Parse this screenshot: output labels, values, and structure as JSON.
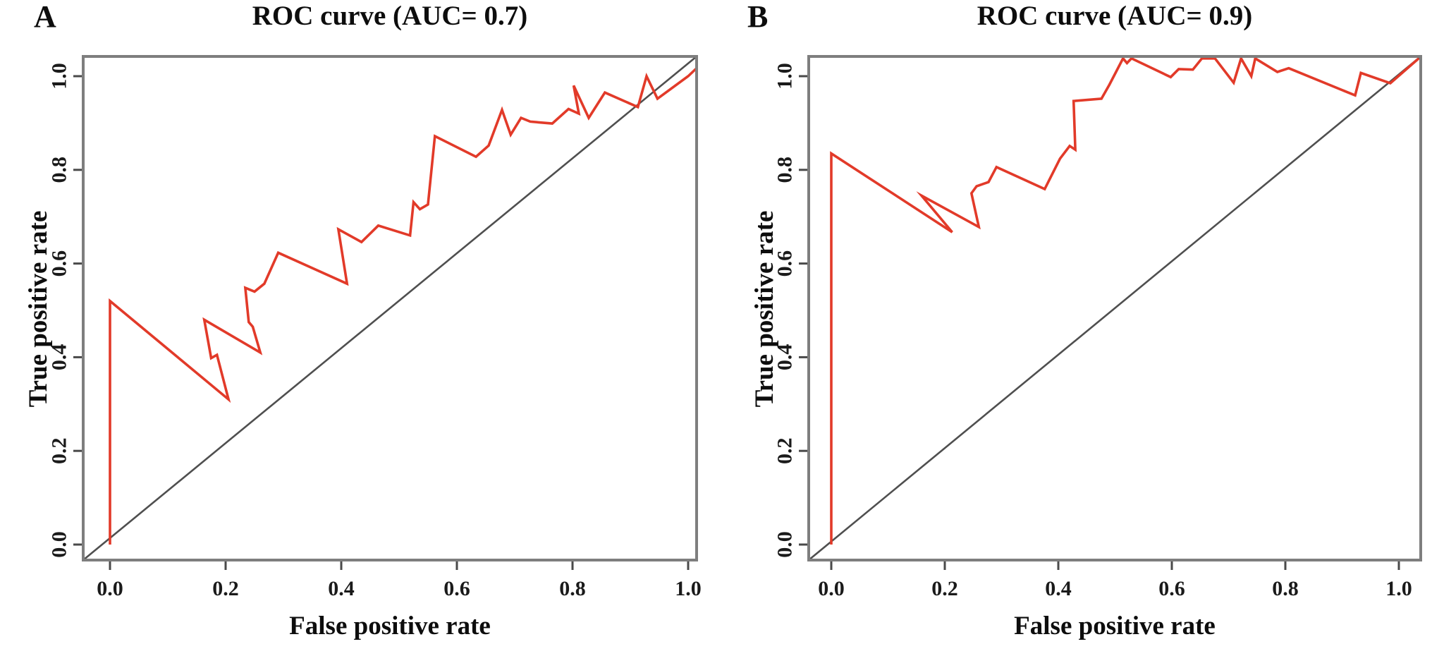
{
  "figure": {
    "background": "#ffffff",
    "curve_color": "#e23a29",
    "diagonal_color": "#4f4f4f",
    "box_color": "#7e7e7e",
    "text_color": "#0d0d0d"
  },
  "panels": [
    {
      "corner_label": "A",
      "title": "ROC curve (AUC= 0.7)",
      "xlabel": "False positive rate",
      "ylabel": "True positive rate",
      "auc": "0.7",
      "x_tick_labels": [
        "0.0",
        "0.2",
        "0.4",
        "0.6",
        "0.8",
        "1.0"
      ],
      "y_tick_labels": [
        "0.0",
        "0.2",
        "0.4",
        "0.6",
        "0.8",
        "1.0"
      ]
    },
    {
      "corner_label": "B",
      "title": "ROC curve (AUC= 0.9)",
      "xlabel": "False positive rate",
      "ylabel": "True positive rate",
      "auc": "0.9",
      "x_tick_labels": [
        "0.0",
        "0.2",
        "0.4",
        "0.6",
        "0.8",
        "1.0"
      ],
      "y_tick_labels": [
        "0.0",
        "0.2",
        "0.4",
        "0.6",
        "0.8",
        "1.0"
      ]
    }
  ],
  "chart_data": [
    {
      "type": "line",
      "title": "ROC curve (AUC= 0.7)",
      "xlabel": "False positive rate",
      "ylabel": "True positive rate",
      "xlim": [
        0,
        1
      ],
      "ylim": [
        0,
        1
      ],
      "x_ticks": [
        0.0,
        0.2,
        0.4,
        0.6,
        0.8,
        1.0
      ],
      "y_ticks": [
        0.0,
        0.2,
        0.4,
        0.6,
        0.8,
        1.0
      ],
      "grid": false,
      "legend": "none",
      "reference_line": "y = x diagonal",
      "auc": 0.7,
      "series": [
        {
          "name": "ROC curve",
          "color": "#e23a29",
          "points": [
            [
              0.0,
              0.0
            ],
            [
              0.0,
              0.52
            ],
            [
              0.205,
              0.31
            ],
            [
              0.185,
              0.405
            ],
            [
              0.175,
              0.398
            ],
            [
              0.163,
              0.48
            ],
            [
              0.26,
              0.41
            ],
            [
              0.247,
              0.465
            ],
            [
              0.24,
              0.475
            ],
            [
              0.234,
              0.548
            ],
            [
              0.25,
              0.54
            ],
            [
              0.267,
              0.557
            ],
            [
              0.291,
              0.623
            ],
            [
              0.41,
              0.557
            ],
            [
              0.395,
              0.673
            ],
            [
              0.435,
              0.646
            ],
            [
              0.464,
              0.681
            ],
            [
              0.519,
              0.66
            ],
            [
              0.525,
              0.731
            ],
            [
              0.536,
              0.716
            ],
            [
              0.55,
              0.726
            ],
            [
              0.562,
              0.872
            ],
            [
              0.633,
              0.828
            ],
            [
              0.655,
              0.852
            ],
            [
              0.678,
              0.928
            ],
            [
              0.693,
              0.875
            ],
            [
              0.711,
              0.911
            ],
            [
              0.727,
              0.903
            ],
            [
              0.765,
              0.899
            ],
            [
              0.793,
              0.93
            ],
            [
              0.811,
              0.92
            ],
            [
              0.802,
              0.98
            ],
            [
              0.828,
              0.911
            ],
            [
              0.856,
              0.965
            ],
            [
              0.913,
              0.934
            ],
            [
              0.928,
              1.0
            ],
            [
              0.947,
              0.952
            ],
            [
              1.0,
              1.0
            ],
            [
              1.03,
              1.035
            ]
          ]
        }
      ]
    },
    {
      "type": "line",
      "title": "ROC curve (AUC= 0.9)",
      "xlabel": "False positive rate",
      "ylabel": "True positive rate",
      "xlim": [
        0,
        1
      ],
      "ylim": [
        0,
        1
      ],
      "x_ticks": [
        0.0,
        0.2,
        0.4,
        0.6,
        0.8,
        1.0
      ],
      "y_ticks": [
        0.0,
        0.2,
        0.4,
        0.6,
        0.8,
        1.0
      ],
      "grid": false,
      "legend": "none",
      "reference_line": "y = x diagonal",
      "auc": 0.9,
      "series": [
        {
          "name": "ROC curve",
          "color": "#e23a29",
          "points": [
            [
              0.0,
              0.0
            ],
            [
              0.0,
              0.835
            ],
            [
              0.213,
              0.667
            ],
            [
              0.159,
              0.745
            ],
            [
              0.26,
              0.678
            ],
            [
              0.247,
              0.75
            ],
            [
              0.256,
              0.765
            ],
            [
              0.277,
              0.774
            ],
            [
              0.291,
              0.806
            ],
            [
              0.376,
              0.759
            ],
            [
              0.403,
              0.824
            ],
            [
              0.42,
              0.851
            ],
            [
              0.43,
              0.843
            ],
            [
              0.427,
              0.947
            ],
            [
              0.476,
              0.952
            ],
            [
              0.49,
              0.982
            ],
            [
              0.514,
              1.038
            ],
            [
              0.521,
              1.028
            ],
            [
              0.529,
              1.038
            ],
            [
              0.598,
              0.998
            ],
            [
              0.612,
              1.015
            ],
            [
              0.637,
              1.014
            ],
            [
              0.653,
              1.038
            ],
            [
              0.676,
              1.038
            ],
            [
              0.709,
              0.986
            ],
            [
              0.722,
              1.038
            ],
            [
              0.74,
              1.0
            ],
            [
              0.747,
              1.038
            ],
            [
              0.786,
              1.009
            ],
            [
              0.806,
              1.017
            ],
            [
              0.923,
              0.959
            ],
            [
              0.933,
              1.007
            ],
            [
              0.985,
              0.985
            ],
            [
              1.035,
              1.038
            ]
          ]
        }
      ]
    }
  ]
}
